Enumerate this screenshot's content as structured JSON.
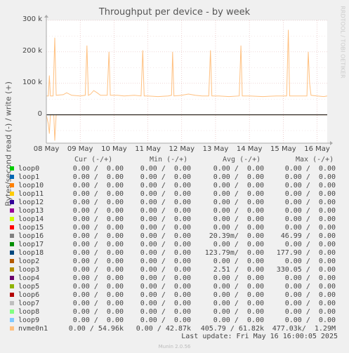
{
  "chart_data": {
    "type": "area",
    "title": "Throughput per device - by week",
    "ylabel": "Bytes/second read (-) / write (+)",
    "ylim": [
      -90000,
      300000
    ],
    "y_ticks": [
      {
        "value": 300000,
        "label": "300 k"
      },
      {
        "value": 200000,
        "label": "200 k"
      },
      {
        "value": 100000,
        "label": "100 k"
      },
      {
        "value": 0,
        "label": "0"
      }
    ],
    "x_ticks": [
      {
        "value": 0.0,
        "label": "08 May"
      },
      {
        "value": 1.0,
        "label": "09 May"
      },
      {
        "value": 2.0,
        "label": "10 May"
      },
      {
        "value": 3.0,
        "label": "11 May"
      },
      {
        "value": 4.0,
        "label": "12 May"
      },
      {
        "value": 5.0,
        "label": "13 May"
      },
      {
        "value": 6.0,
        "label": "14 May"
      },
      {
        "value": 7.0,
        "label": "15 May"
      },
      {
        "value": 8.0,
        "label": "16 May"
      }
    ],
    "xlim": [
      0,
      8.3
    ],
    "grid": true,
    "series": [
      {
        "name": "nvme0n1",
        "color": "#ffc080",
        "write_points": [
          [
            0.0,
            60000
          ],
          [
            0.06,
            60000
          ],
          [
            0.09,
            125000
          ],
          [
            0.12,
            60000
          ],
          [
            0.2,
            60000
          ],
          [
            0.25,
            245000
          ],
          [
            0.29,
            62000
          ],
          [
            0.5,
            64000
          ],
          [
            0.6,
            70000
          ],
          [
            0.75,
            62000
          ],
          [
            1.0,
            60000
          ],
          [
            1.15,
            62000
          ],
          [
            1.2,
            220000
          ],
          [
            1.24,
            62000
          ],
          [
            1.3,
            65000
          ],
          [
            1.4,
            77000
          ],
          [
            1.5,
            70000
          ],
          [
            1.6,
            62000
          ],
          [
            1.8,
            62000
          ],
          [
            1.85,
            200000
          ],
          [
            1.89,
            62000
          ],
          [
            2.1,
            62000
          ],
          [
            2.3,
            60000
          ],
          [
            2.6,
            62000
          ],
          [
            2.8,
            60000
          ],
          [
            2.85,
            205000
          ],
          [
            2.89,
            60000
          ],
          [
            3.0,
            60000
          ],
          [
            3.3,
            58000
          ],
          [
            3.6,
            60000
          ],
          [
            3.7,
            62000
          ],
          [
            3.73,
            200000
          ],
          [
            3.77,
            60000
          ],
          [
            4.0,
            62000
          ],
          [
            4.2,
            66000
          ],
          [
            4.4,
            62000
          ],
          [
            4.6,
            60000
          ],
          [
            4.8,
            60000
          ],
          [
            4.85,
            205000
          ],
          [
            4.89,
            60000
          ],
          [
            5.1,
            60000
          ],
          [
            5.4,
            58000
          ],
          [
            5.7,
            60000
          ],
          [
            5.75,
            220000
          ],
          [
            5.79,
            60000
          ],
          [
            6.0,
            60000
          ],
          [
            6.4,
            58000
          ],
          [
            6.8,
            60000
          ],
          [
            7.1,
            60000
          ],
          [
            7.15,
            270000
          ],
          [
            7.19,
            60000
          ],
          [
            7.4,
            60000
          ],
          [
            7.7,
            60000
          ],
          [
            7.74,
            200000
          ],
          [
            7.78,
            100000
          ],
          [
            7.82,
            62000
          ],
          [
            8.0,
            60000
          ],
          [
            8.2,
            58000
          ],
          [
            8.3,
            60000
          ]
        ],
        "read_points": [
          [
            0.0,
            0
          ],
          [
            0.06,
            -30000
          ],
          [
            0.09,
            -60000
          ],
          [
            0.12,
            0
          ],
          [
            0.22,
            0
          ],
          [
            0.25,
            -82000
          ],
          [
            0.29,
            0
          ],
          [
            8.3,
            0
          ]
        ]
      }
    ]
  },
  "rrdtool_credit": "RRDTOOL / TOBI OETIKER",
  "legend": {
    "headers": {
      "cur": "Cur (-/+)",
      "min": "Min (-/+)",
      "avg": "Avg (-/+)",
      "max": "Max (-/+)"
    },
    "rows": [
      {
        "name": "loop0",
        "color": "#00cc00",
        "cur": "0.00 /  0.00",
        "min": "0.00 /  0.00",
        "avg": "0.00 /  0.00",
        "max": "0.00 /  0.00"
      },
      {
        "name": "loop1",
        "color": "#0066b3",
        "cur": "0.00 /  0.00",
        "min": "0.00 /  0.00",
        "avg": "0.00 /  0.00",
        "max": "0.00 /  0.00"
      },
      {
        "name": "loop10",
        "color": "#ff8000",
        "cur": "0.00 /  0.00",
        "min": "0.00 /  0.00",
        "avg": "0.00 /  0.00",
        "max": "0.00 /  0.00"
      },
      {
        "name": "loop11",
        "color": "#ffcc00",
        "cur": "0.00 /  0.00",
        "min": "0.00 /  0.00",
        "avg": "0.00 /  0.00",
        "max": "0.00 /  0.00"
      },
      {
        "name": "loop12",
        "color": "#330099",
        "cur": "0.00 /  0.00",
        "min": "0.00 /  0.00",
        "avg": "0.00 /  0.00",
        "max": "0.00 /  0.00"
      },
      {
        "name": "loop13",
        "color": "#990099",
        "cur": "0.00 /  0.00",
        "min": "0.00 /  0.00",
        "avg": "0.00 /  0.00",
        "max": "0.00 /  0.00"
      },
      {
        "name": "loop14",
        "color": "#ccff00",
        "cur": "0.00 /  0.00",
        "min": "0.00 /  0.00",
        "avg": "0.00 /  0.00",
        "max": "0.00 /  0.00"
      },
      {
        "name": "loop15",
        "color": "#ff0000",
        "cur": "0.00 /  0.00",
        "min": "0.00 /  0.00",
        "avg": "0.00 /  0.00",
        "max": "0.00 /  0.00"
      },
      {
        "name": "loop16",
        "color": "#808080",
        "cur": "0.00 /  0.00",
        "min": "0.00 /  0.00",
        "avg": "20.39m/  0.00",
        "max": "46.99 /  0.00"
      },
      {
        "name": "loop17",
        "color": "#008f00",
        "cur": "0.00 /  0.00",
        "min": "0.00 /  0.00",
        "avg": "0.00 /  0.00",
        "max": "0.00 /  0.00"
      },
      {
        "name": "loop18",
        "color": "#00487d",
        "cur": "0.00 /  0.00",
        "min": "0.00 /  0.00",
        "avg": "123.79m/  0.00",
        "max": "177.90 /  0.00"
      },
      {
        "name": "loop2",
        "color": "#b35a00",
        "cur": "0.00 /  0.00",
        "min": "0.00 /  0.00",
        "avg": "0.00 /  0.00",
        "max": "0.00 /  0.00"
      },
      {
        "name": "loop3",
        "color": "#b38f00",
        "cur": "0.00 /  0.00",
        "min": "0.00 /  0.00",
        "avg": "2.51 /  0.00",
        "max": "330.05 /  0.00"
      },
      {
        "name": "loop4",
        "color": "#6b006b",
        "cur": "0.00 /  0.00",
        "min": "0.00 /  0.00",
        "avg": "0.00 /  0.00",
        "max": "0.00 /  0.00"
      },
      {
        "name": "loop5",
        "color": "#8fb300",
        "cur": "0.00 /  0.00",
        "min": "0.00 /  0.00",
        "avg": "0.00 /  0.00",
        "max": "0.00 /  0.00"
      },
      {
        "name": "loop6",
        "color": "#b30000",
        "cur": "0.00 /  0.00",
        "min": "0.00 /  0.00",
        "avg": "0.00 /  0.00",
        "max": "0.00 /  0.00"
      },
      {
        "name": "loop7",
        "color": "#bebebe",
        "cur": "0.00 /  0.00",
        "min": "0.00 /  0.00",
        "avg": "0.00 /  0.00",
        "max": "0.00 /  0.00"
      },
      {
        "name": "loop8",
        "color": "#80ff80",
        "cur": "0.00 /  0.00",
        "min": "0.00 /  0.00",
        "avg": "0.00 /  0.00",
        "max": "0.00 /  0.00"
      },
      {
        "name": "loop9",
        "color": "#80c9ff",
        "cur": "0.00 /  0.00",
        "min": "0.00 /  0.00",
        "avg": "0.00 /  0.00",
        "max": "0.00 /  0.00"
      },
      {
        "name": "nvme0n1",
        "color": "#ffc080",
        "cur": "0.00 / 54.96k",
        "min": "0.00 / 42.87k",
        "avg": "405.79 / 61.82k",
        "max": "477.03k/  1.29M"
      }
    ]
  },
  "last_update": "Last update: Fri May 16 16:00:05 2025",
  "munin_version": "Munin 2.0.56"
}
